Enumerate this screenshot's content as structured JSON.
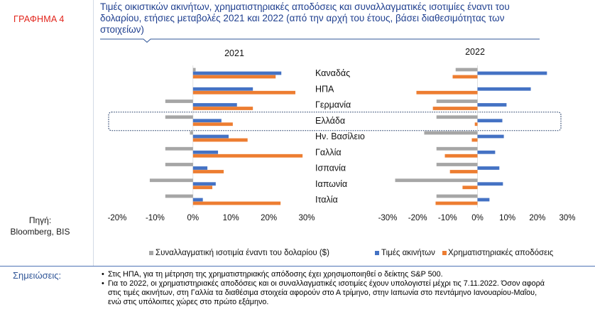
{
  "figure": {
    "number_label": "ΓΡΑΦΗΜΑ 4",
    "title": "Τιμές οικιστικών ακινήτων, χρηματιστηριακές αποδόσεις και συναλλαγματικές ισοτιμίες έναντι του\nδολαρίου, ετήσιες μεταβολές 2021 και 2022 (από την αρχή του έτους, βάσει διαθεσιμότητας των\nστοιχείων)",
    "colors": {
      "number_label": "#e2231a",
      "title": "#1f3f8f",
      "rule": "#4f74b5",
      "notes_label": "#2f5597",
      "highlight_box": "#1f3864"
    }
  },
  "source": {
    "label": "Πηγή:",
    "value": "Bloomberg, BIS"
  },
  "notes": {
    "label": "Σημειώσεις:",
    "items": [
      "Στις ΗΠΑ, για τη μέτρηση της χρηματιστηριακής απόδοσης έχει χρησιμοποιηθεί ο δείκτης S&P 500.",
      "Για το 2022, οι χρηματιστηριακές αποδόσεις και οι συναλλαγματικές ισοτιμίες έχουν υπολογιστεί μέχρι τις 7.11.2022. Όσον αφορά\nστις τιμές ακινήτων, στη Γαλλία τα διαθέσιμα στοιχεία αφορούν στο Α τρίμηνο, στην Ιαπωνία στο πεντάμηνο Ιανουαρίου-Μαΐου,\nενώ στις υπόλοιπες χώρες στο πρώτο εξάμηνο."
    ]
  },
  "chart_data": {
    "type": "bar",
    "orientation": "horizontal",
    "categories": [
      "Καναδάς",
      "ΗΠΑ",
      "Γερμανία",
      "Ελλάδα",
      "Ην. Βασίλειο",
      "Γαλλία",
      "Ισπανία",
      "Ιαπωνία",
      "Ιταλία"
    ],
    "series": [
      {
        "name": "Συναλλαγματική ισοτιμία έναντι του δολαρίου ($)",
        "color": "#a6a6a6"
      },
      {
        "name": "Τιμές ακινήτων",
        "color": "#4472c4"
      },
      {
        "name": "Χρηματιστηριακές αποδόσεις",
        "color": "#ed7d31"
      }
    ],
    "panels": [
      {
        "title": "2021",
        "xlim": [
          -20,
          30
        ],
        "xticks": [
          -20,
          -10,
          0,
          10,
          20,
          30
        ],
        "xtick_labels": [
          "-20%",
          "-10%",
          "0%",
          "10%",
          "20%",
          "30%"
        ],
        "values": [
          [
            0.7,
            null,
            -7.3,
            -7.3,
            -0.8,
            -7.3,
            -7.3,
            -11.4,
            -7.3
          ],
          [
            23.3,
            15.8,
            11.6,
            7.5,
            9.4,
            6.6,
            3.8,
            6.0,
            2.6
          ],
          [
            21.8,
            27.0,
            15.8,
            10.5,
            14.4,
            28.9,
            8.1,
            5.1,
            23.1
          ]
        ]
      },
      {
        "title": "2022",
        "xlim": [
          -30,
          30
        ],
        "xticks": [
          -30,
          -20,
          -10,
          0,
          10,
          20,
          30
        ],
        "xtick_labels": [
          "-30%",
          "-20%",
          "-10%",
          "0%",
          "10%",
          "20%",
          "30%"
        ],
        "values": [
          [
            -7.3,
            null,
            -13.7,
            -13.7,
            -17.8,
            -13.7,
            -13.7,
            -27.5,
            -13.7
          ],
          [
            23.2,
            17.8,
            9.7,
            8.3,
            8.8,
            5.9,
            7.3,
            8.5,
            4.0
          ],
          [
            -8.3,
            -20.4,
            -14.9,
            -0.9,
            -1.9,
            -10.9,
            -9.2,
            -5.0,
            -14.0
          ]
        ]
      }
    ],
    "highlighted_category_index": 3,
    "legend": "bottom",
    "grid": false
  }
}
